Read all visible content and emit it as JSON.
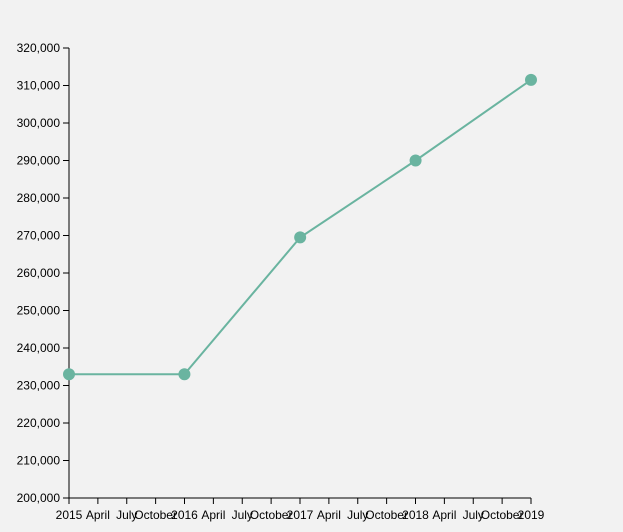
{
  "chart_data": {
    "type": "line",
    "title": "",
    "xlabel": "",
    "ylabel": "",
    "x_ticks": [
      "2015",
      "April",
      "July",
      "October",
      "2016",
      "April",
      "July",
      "October",
      "2017",
      "April",
      "July",
      "October",
      "2018",
      "April",
      "July",
      "October",
      "2019"
    ],
    "y_ticks": [
      "200,000",
      "210,000",
      "220,000",
      "230,000",
      "240,000",
      "250,000",
      "260,000",
      "270,000",
      "280,000",
      "290,000",
      "300,000",
      "310,000",
      "320,000"
    ],
    "ylim": [
      200000,
      320000
    ],
    "xlim": [
      "2015-01-01",
      "2019-01-01"
    ],
    "grid": false,
    "series": [
      {
        "color": "#6ab4a0",
        "points": [
          {
            "x": "2015-01-01",
            "y": 233000
          },
          {
            "x": "2016-01-01",
            "y": 233000
          },
          {
            "x": "2017-01-01",
            "y": 269500
          },
          {
            "x": "2018-01-01",
            "y": 290000
          },
          {
            "x": "2019-01-01",
            "y": 311500
          }
        ]
      }
    ]
  }
}
